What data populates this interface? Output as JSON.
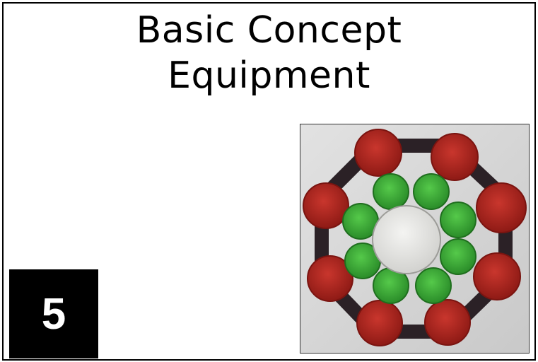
{
  "title": {
    "line1": "Basic Concept",
    "line2": "Equipment"
  },
  "badge": {
    "number": "5"
  },
  "photo": {
    "subject": "bottle caps arranged in rings",
    "colors": {
      "outer_caps": "#b8261f",
      "inner_caps": "#3fb23a",
      "center_lid": "#e6e6e3",
      "octagon_band": "#2b2126",
      "background": "#dcdcdc"
    }
  }
}
